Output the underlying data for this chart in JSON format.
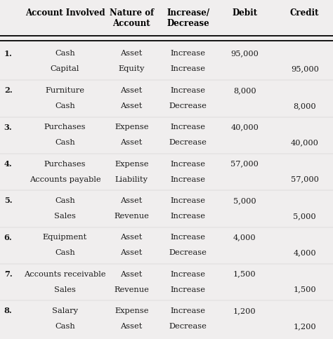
{
  "background_color": "#f0eeee",
  "figsize": [
    4.74,
    4.83
  ],
  "dpi": 100,
  "header_row": [
    "Account Involved",
    "Nature of\nAccount",
    "Increase/\nDecrease",
    "Debit",
    "Credit"
  ],
  "rows": [
    {
      "num": "1.",
      "accounts": [
        "Cash",
        "Capital"
      ],
      "nature": [
        "Asset",
        "Equity"
      ],
      "change": [
        "Increase",
        "Increase"
      ],
      "debit": [
        "95,000",
        ""
      ],
      "credit": [
        "",
        "95,000"
      ]
    },
    {
      "num": "2.",
      "accounts": [
        "Furniture",
        "Cash"
      ],
      "nature": [
        "Asset",
        "Asset"
      ],
      "change": [
        "Increase",
        "Decrease"
      ],
      "debit": [
        "8,000",
        ""
      ],
      "credit": [
        "",
        "8,000"
      ]
    },
    {
      "num": "3.",
      "accounts": [
        "Purchases",
        "Cash"
      ],
      "nature": [
        "Expense",
        "Asset"
      ],
      "change": [
        "Increase",
        "Decrease"
      ],
      "debit": [
        "40,000",
        ""
      ],
      "credit": [
        "",
        "40,000"
      ]
    },
    {
      "num": "4.",
      "accounts": [
        "Purchases",
        "Accounts payable"
      ],
      "nature": [
        "Expense",
        "Liability"
      ],
      "change": [
        "Increase",
        "Increase"
      ],
      "debit": [
        "57,000",
        ""
      ],
      "credit": [
        "",
        "57,000"
      ]
    },
    {
      "num": "5.",
      "accounts": [
        "Cash",
        "Sales"
      ],
      "nature": [
        "Asset",
        "Revenue"
      ],
      "change": [
        "Increase",
        "Increase"
      ],
      "debit": [
        "5,000",
        ""
      ],
      "credit": [
        "",
        "5,000"
      ]
    },
    {
      "num": "6.",
      "accounts": [
        "Equipment",
        "Cash"
      ],
      "nature": [
        "Asset",
        "Asset"
      ],
      "change": [
        "Increase",
        "Decrease"
      ],
      "debit": [
        "4,000",
        ""
      ],
      "credit": [
        "",
        "4,000"
      ]
    },
    {
      "num": "7.",
      "accounts": [
        "Accounts receivable",
        "Sales"
      ],
      "nature": [
        "Asset",
        "Revenue"
      ],
      "change": [
        "Increase",
        "Increase"
      ],
      "debit": [
        "1,500",
        ""
      ],
      "credit": [
        "",
        "1,500"
      ]
    },
    {
      "num": "8.",
      "accounts": [
        "Salary",
        "Cash"
      ],
      "nature": [
        "Expense",
        "Asset"
      ],
      "change": [
        "Increase",
        "Decrease"
      ],
      "debit": [
        "1,200",
        ""
      ],
      "credit": [
        "",
        "1,200"
      ]
    }
  ],
  "col_x": {
    "num": 0.012,
    "account": 0.195,
    "nature": 0.395,
    "change": 0.565,
    "debit": 0.735,
    "credit": 0.915
  },
  "header_fontsize": 8.5,
  "body_fontsize": 8.2,
  "header_color": "#000000",
  "body_color": "#1a1a1a",
  "line_color": "#000000"
}
